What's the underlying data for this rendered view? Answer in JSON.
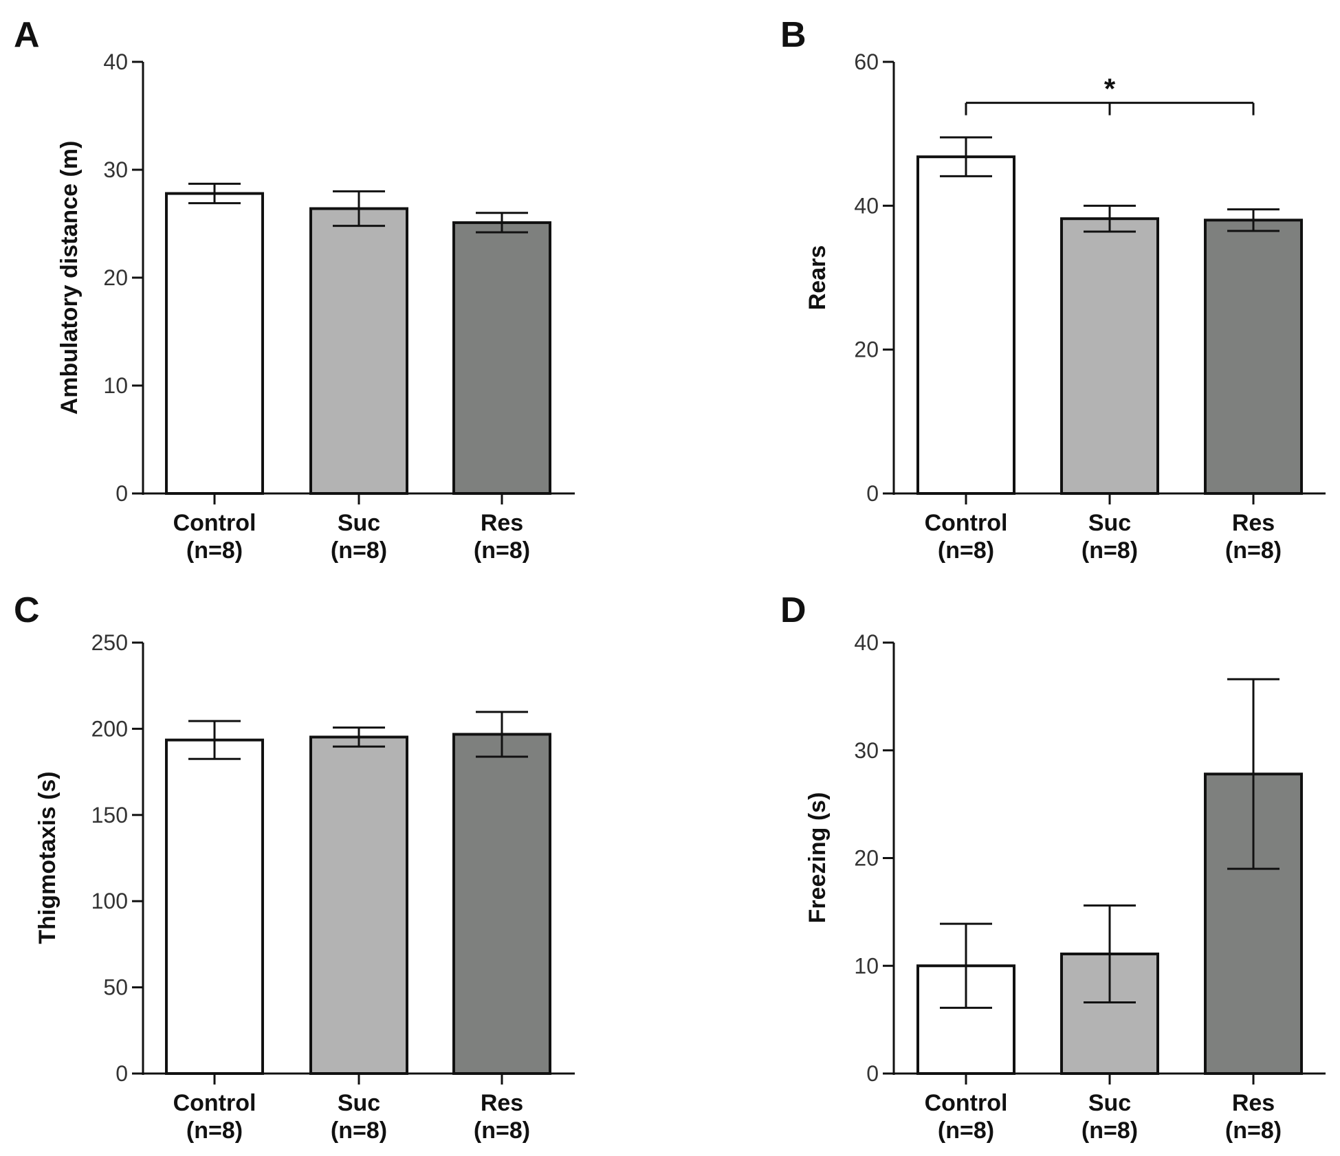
{
  "chart_data": [
    {
      "panel": "A",
      "type": "bar",
      "ylabel": "Ambulatory distance (m)",
      "ylim": [
        0,
        40
      ],
      "yticks": [
        0,
        10,
        20,
        30,
        40
      ],
      "categories": [
        "Control",
        "Suc",
        "Res"
      ],
      "sample_sizes": [
        "(n=8)",
        "(n=8)",
        "(n=8)"
      ],
      "values": [
        27.8,
        26.4,
        25.1
      ],
      "errors": [
        0.9,
        1.6,
        0.9
      ],
      "colors": [
        "#ffffff",
        "#b3b3b3",
        "#7e807e"
      ],
      "significance": []
    },
    {
      "panel": "B",
      "type": "bar",
      "ylabel": "Rears",
      "ylim": [
        0,
        60
      ],
      "yticks": [
        0,
        20,
        40,
        60
      ],
      "categories": [
        "Control",
        "Suc",
        "Res"
      ],
      "sample_sizes": [
        "(n=8)",
        "(n=8)",
        "(n=8)"
      ],
      "values": [
        46.8,
        38.2,
        38.0
      ],
      "errors": [
        2.7,
        1.8,
        1.5
      ],
      "colors": [
        "#ffffff",
        "#b3b3b3",
        "#7e807e"
      ],
      "significance": [
        {
          "from": 0,
          "to": 2,
          "label": "*",
          "y": 54.3
        }
      ]
    },
    {
      "panel": "C",
      "type": "bar",
      "ylabel": "Thigmotaxis (s)",
      "ylim": [
        0,
        250
      ],
      "yticks": [
        0,
        50,
        100,
        150,
        200,
        250
      ],
      "categories": [
        "Control",
        "Suc",
        "Res"
      ],
      "sample_sizes": [
        "(n=8)",
        "(n=8)",
        "(n=8)"
      ],
      "values": [
        193.5,
        195.2,
        196.8
      ],
      "errors": [
        11.0,
        5.5,
        13.0
      ],
      "colors": [
        "#ffffff",
        "#b3b3b3",
        "#7e807e"
      ],
      "significance": []
    },
    {
      "panel": "D",
      "type": "bar",
      "ylabel": "Freezing (s)",
      "ylim": [
        0,
        40
      ],
      "yticks": [
        0,
        10,
        20,
        30,
        40
      ],
      "categories": [
        "Control",
        "Suc",
        "Res"
      ],
      "sample_sizes": [
        "(n=8)",
        "(n=8)",
        "(n=8)"
      ],
      "values": [
        10.0,
        11.1,
        27.8
      ],
      "errors": [
        3.9,
        4.5,
        8.8
      ],
      "colors": [
        "#ffffff",
        "#b3b3b3",
        "#7e807e"
      ],
      "significance": []
    }
  ]
}
